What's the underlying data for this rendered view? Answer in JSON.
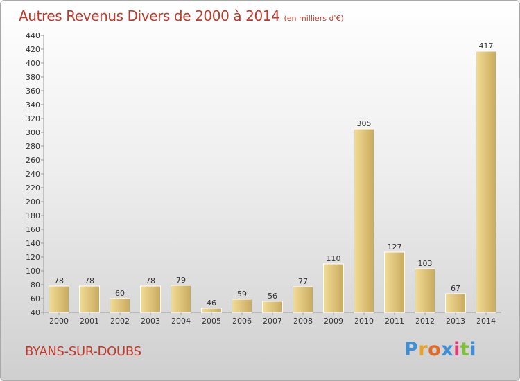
{
  "header": {
    "title": "Autres Revenus Divers de 2000 à 2014",
    "unit": "(en milliers d'€)"
  },
  "footer": {
    "commune": "BYANS-SUR-DOUBS",
    "logo": {
      "letters": [
        "P",
        "r",
        "o",
        "x",
        "i",
        "t",
        "i"
      ],
      "colors": [
        "#3f8fd6",
        "#e9a326",
        "#e06a2a",
        "#3f8fd6",
        "#e03a7a",
        "#7fbf3a",
        "#3f8fd6"
      ]
    }
  },
  "chart_data": {
    "type": "bar",
    "title": "Autres Revenus Divers de 2000 à 2014",
    "xlabel": "",
    "ylabel": "",
    "categories": [
      "2000",
      "2001",
      "2002",
      "2003",
      "2004",
      "2005",
      "2006",
      "2007",
      "2008",
      "2009",
      "2010",
      "2011",
      "2012",
      "2013",
      "2014"
    ],
    "values": [
      78,
      78,
      60,
      78,
      79,
      46,
      59,
      56,
      77,
      110,
      305,
      127,
      103,
      67,
      417
    ],
    "ylim": [
      40,
      440
    ],
    "ytick_step": 20,
    "grid": false,
    "bar_color_light": "#f3dc96",
    "bar_color_dark": "#c8aa5e"
  }
}
